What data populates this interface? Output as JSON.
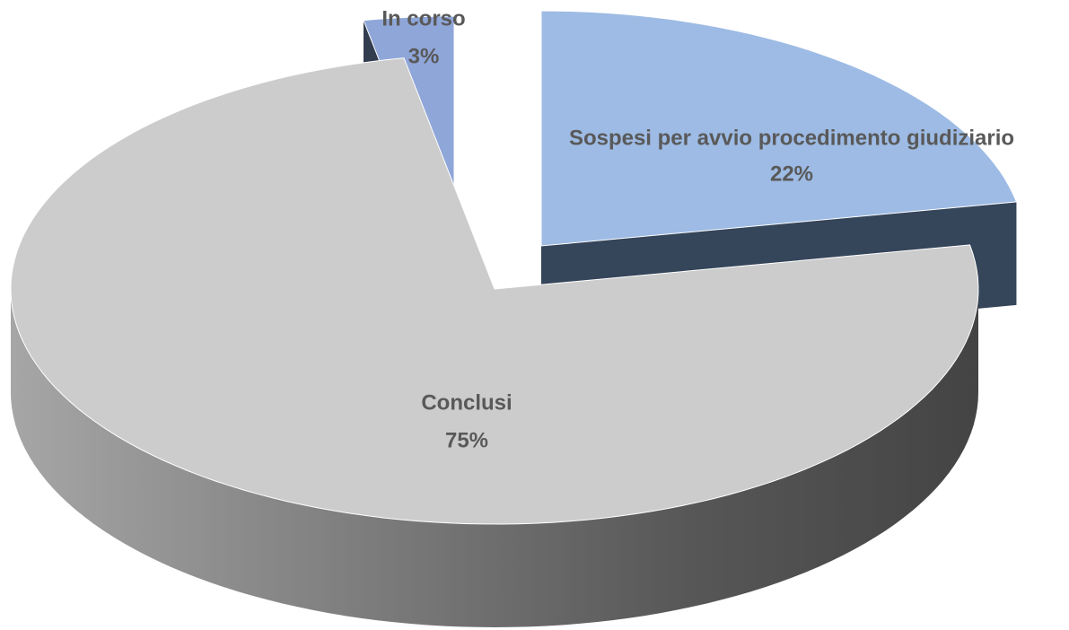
{
  "chart_data": {
    "type": "pie",
    "categories": [
      "Sospesi per avvio procedimento giudiziario",
      "Conclusi",
      "In corso"
    ],
    "values": [
      22,
      75,
      3
    ],
    "value_labels": [
      "22%",
      "75%",
      "3%"
    ],
    "colors": [
      "#9dbbe4",
      "#cccccc",
      "#8fa6d9"
    ]
  }
}
